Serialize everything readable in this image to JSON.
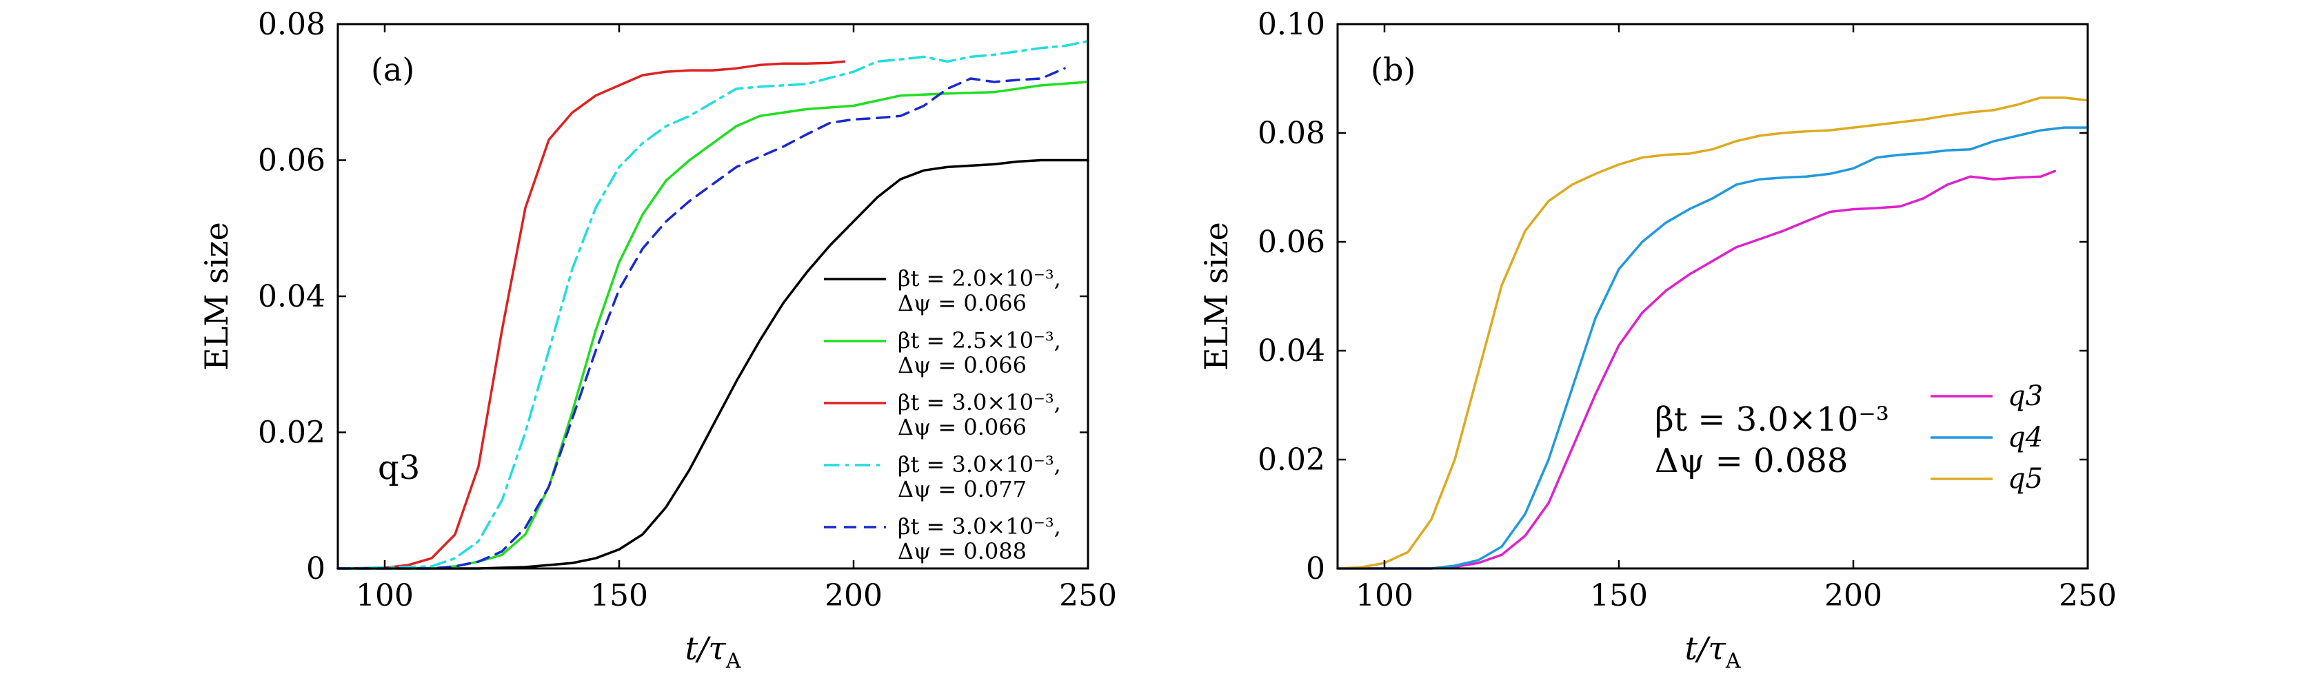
{
  "chart_data": [
    {
      "type": "line",
      "panel_label": "(a)",
      "xlabel": {
        "main": "t/τ",
        "sub": "A"
      },
      "ylabel": "ELM size",
      "xlim": [
        90,
        250
      ],
      "ylim": [
        0,
        0.08
      ],
      "xticks": [
        100,
        150,
        200,
        250
      ],
      "xtick_labels": [
        "100",
        "150",
        "200",
        "250"
      ],
      "yticks": [
        0,
        0.02,
        0.04,
        0.06,
        0.08
      ],
      "ytick_labels": [
        "0",
        "0.02",
        "0.04",
        "0.06",
        "0.08"
      ],
      "grid": false,
      "legend_position": "lower-right",
      "annotation": "q3",
      "series": [
        {
          "legend_line1": "βt = 2.0×10⁻³,",
          "legend_line2": "Δψ = 0.066",
          "color": "#000000",
          "dash": "solid",
          "x": [
            90,
            120,
            130,
            140,
            145,
            150,
            155,
            160,
            165,
            170,
            175,
            180,
            185,
            190,
            195,
            200,
            205,
            210,
            215,
            220,
            225,
            230,
            235,
            240,
            245,
            250
          ],
          "y": [
            0,
            0,
            0.0002,
            0.0008,
            0.0015,
            0.0028,
            0.005,
            0.009,
            0.0145,
            0.021,
            0.0275,
            0.0335,
            0.039,
            0.0435,
            0.0475,
            0.051,
            0.0545,
            0.0572,
            0.0585,
            0.059,
            0.0592,
            0.0594,
            0.0598,
            0.06,
            0.06,
            0.06
          ]
        },
        {
          "legend_line1": "βt = 2.5×10⁻³,",
          "legend_line2": "Δψ = 0.066",
          "color": "#22dd22",
          "dash": "solid",
          "x": [
            90,
            110,
            115,
            120,
            125,
            130,
            135,
            140,
            145,
            150,
            155,
            160,
            165,
            170,
            175,
            180,
            190,
            200,
            210,
            220,
            230,
            240,
            250
          ],
          "y": [
            0,
            0,
            0.0003,
            0.001,
            0.002,
            0.005,
            0.012,
            0.023,
            0.035,
            0.045,
            0.052,
            0.057,
            0.06,
            0.0625,
            0.065,
            0.0665,
            0.0675,
            0.068,
            0.0695,
            0.0698,
            0.07,
            0.071,
            0.0715
          ]
        },
        {
          "legend_line1": "βt = 3.0×10⁻³,",
          "legend_line2": "Δψ = 0.066",
          "color": "#dd2222",
          "dash": "solid",
          "x": [
            90,
            100,
            105,
            110,
            115,
            120,
            125,
            130,
            135,
            140,
            145,
            150,
            155,
            160,
            165,
            170,
            175,
            180,
            185,
            190,
            195,
            198
          ],
          "y": [
            0,
            0.0001,
            0.0005,
            0.0015,
            0.005,
            0.015,
            0.035,
            0.053,
            0.063,
            0.067,
            0.0695,
            0.071,
            0.0725,
            0.073,
            0.0732,
            0.0732,
            0.0735,
            0.074,
            0.0742,
            0.0742,
            0.0743,
            0.0745
          ]
        },
        {
          "legend_line1": "βt = 3.0×10⁻³,",
          "legend_line2": "Δψ = 0.077",
          "color": "#22dddd",
          "dash": "dashdot",
          "x": [
            90,
            110,
            115,
            120,
            125,
            130,
            135,
            140,
            145,
            150,
            155,
            160,
            165,
            170,
            175,
            180,
            185,
            190,
            200,
            205,
            210,
            215,
            220,
            225,
            230,
            235,
            240,
            245,
            250
          ],
          "y": [
            0,
            0.0003,
            0.0015,
            0.004,
            0.01,
            0.02,
            0.032,
            0.044,
            0.053,
            0.059,
            0.0625,
            0.065,
            0.0665,
            0.0685,
            0.0705,
            0.0708,
            0.071,
            0.0712,
            0.073,
            0.0745,
            0.0748,
            0.0752,
            0.0745,
            0.0752,
            0.0755,
            0.076,
            0.0765,
            0.0768,
            0.0775
          ]
        },
        {
          "legend_line1": "βt = 3.0×10⁻³,",
          "legend_line2": "Δψ = 0.088",
          "color": "#1a2acc",
          "dash": "dashed",
          "x": [
            90,
            110,
            115,
            120,
            125,
            130,
            135,
            140,
            145,
            150,
            155,
            160,
            165,
            170,
            175,
            180,
            185,
            190,
            195,
            200,
            205,
            210,
            215,
            220,
            225,
            230,
            235,
            240,
            245
          ],
          "y": [
            0,
            0,
            0.0003,
            0.001,
            0.0025,
            0.006,
            0.012,
            0.022,
            0.032,
            0.041,
            0.047,
            0.051,
            0.054,
            0.0565,
            0.059,
            0.0605,
            0.062,
            0.0638,
            0.0655,
            0.066,
            0.0662,
            0.0665,
            0.068,
            0.0705,
            0.072,
            0.0715,
            0.0718,
            0.072,
            0.0735
          ]
        }
      ]
    },
    {
      "type": "line",
      "panel_label": "(b)",
      "xlabel": {
        "main": "t/τ",
        "sub": "A"
      },
      "ylabel": "ELM size",
      "xlim": [
        90,
        250
      ],
      "ylim": [
        0,
        0.1
      ],
      "xticks": [
        100,
        150,
        200,
        250
      ],
      "xtick_labels": [
        "100",
        "150",
        "200",
        "250"
      ],
      "yticks": [
        0,
        0.02,
        0.04,
        0.06,
        0.08,
        0.1
      ],
      "ytick_labels": [
        "0",
        "0.02",
        "0.04",
        "0.06",
        "0.08",
        "0.10"
      ],
      "grid": false,
      "legend_position": "lower-right",
      "annotation_line1": "βt = 3.0×10⁻³",
      "annotation_line2": "Δψ = 0.088",
      "series": [
        {
          "name": "q3",
          "color": "#dd22cc",
          "x": [
            90,
            110,
            115,
            120,
            125,
            130,
            135,
            140,
            145,
            150,
            155,
            160,
            165,
            170,
            175,
            180,
            185,
            190,
            195,
            200,
            205,
            210,
            215,
            220,
            225,
            230,
            235,
            240,
            243
          ],
          "y": [
            0,
            0,
            0.0003,
            0.001,
            0.0025,
            0.006,
            0.012,
            0.022,
            0.032,
            0.041,
            0.047,
            0.051,
            0.054,
            0.0565,
            0.059,
            0.0605,
            0.062,
            0.0638,
            0.0655,
            0.066,
            0.0662,
            0.0665,
            0.068,
            0.0705,
            0.072,
            0.0715,
            0.0718,
            0.072,
            0.073
          ]
        },
        {
          "name": "q4",
          "color": "#2299dd",
          "x": [
            90,
            110,
            115,
            120,
            125,
            130,
            135,
            140,
            145,
            150,
            155,
            160,
            165,
            170,
            175,
            180,
            185,
            190,
            195,
            200,
            205,
            210,
            215,
            220,
            225,
            230,
            235,
            240,
            245,
            250
          ],
          "y": [
            0,
            0,
            0.0005,
            0.0015,
            0.004,
            0.01,
            0.02,
            0.033,
            0.046,
            0.055,
            0.06,
            0.0635,
            0.066,
            0.068,
            0.0705,
            0.0715,
            0.0718,
            0.072,
            0.0725,
            0.0735,
            0.0755,
            0.076,
            0.0763,
            0.0768,
            0.077,
            0.0785,
            0.0795,
            0.0805,
            0.081,
            0.081
          ]
        },
        {
          "name": "q5",
          "color": "#ddaa22",
          "x": [
            90,
            95,
            100,
            105,
            110,
            115,
            120,
            125,
            130,
            135,
            140,
            145,
            150,
            155,
            160,
            165,
            170,
            175,
            180,
            185,
            190,
            195,
            200,
            205,
            210,
            215,
            220,
            225,
            230,
            235,
            240,
            245,
            250
          ],
          "y": [
            0,
            0.0002,
            0.001,
            0.003,
            0.009,
            0.02,
            0.036,
            0.052,
            0.062,
            0.0675,
            0.0705,
            0.0725,
            0.0742,
            0.0755,
            0.076,
            0.0762,
            0.077,
            0.0785,
            0.0795,
            0.08,
            0.0803,
            0.0805,
            0.081,
            0.0815,
            0.082,
            0.0825,
            0.0832,
            0.0838,
            0.0842,
            0.0852,
            0.0865,
            0.0865,
            0.086
          ]
        }
      ]
    }
  ]
}
